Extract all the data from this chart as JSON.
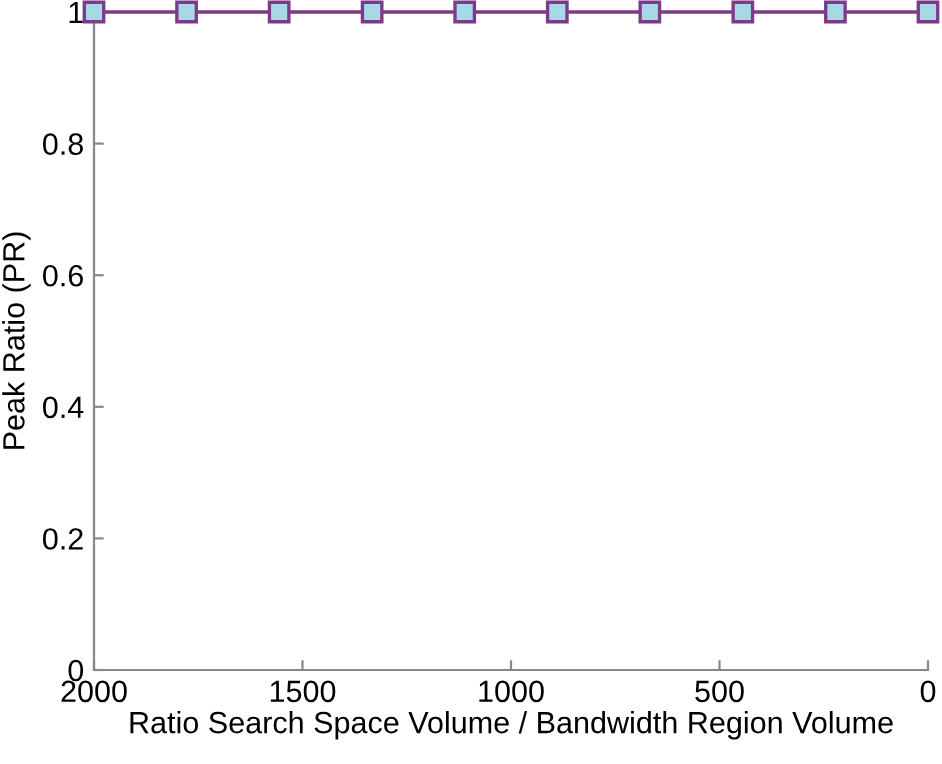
{
  "chart_data": {
    "type": "line",
    "xlabel": "Ratio Search Space Volume / Bandwidth Region Volume",
    "ylabel": "Peak Ratio (PR)",
    "x": [
      2000,
      1778,
      1556,
      1333,
      1111,
      889,
      667,
      444,
      222,
      0
    ],
    "series": [
      {
        "color": "#7e3a8a",
        "values": [
          1,
          1,
          1,
          1,
          1,
          1,
          1,
          1,
          1,
          1
        ]
      }
    ],
    "marker": "square",
    "line_style": "solid",
    "grid": false,
    "legend": false,
    "xlim": [
      2000,
      0
    ],
    "xticks": [
      2000,
      1500,
      1000,
      500,
      0
    ],
    "ylim": [
      0,
      1
    ],
    "yticks": [
      0,
      0.2,
      0.4,
      0.6,
      0.8,
      1
    ]
  }
}
